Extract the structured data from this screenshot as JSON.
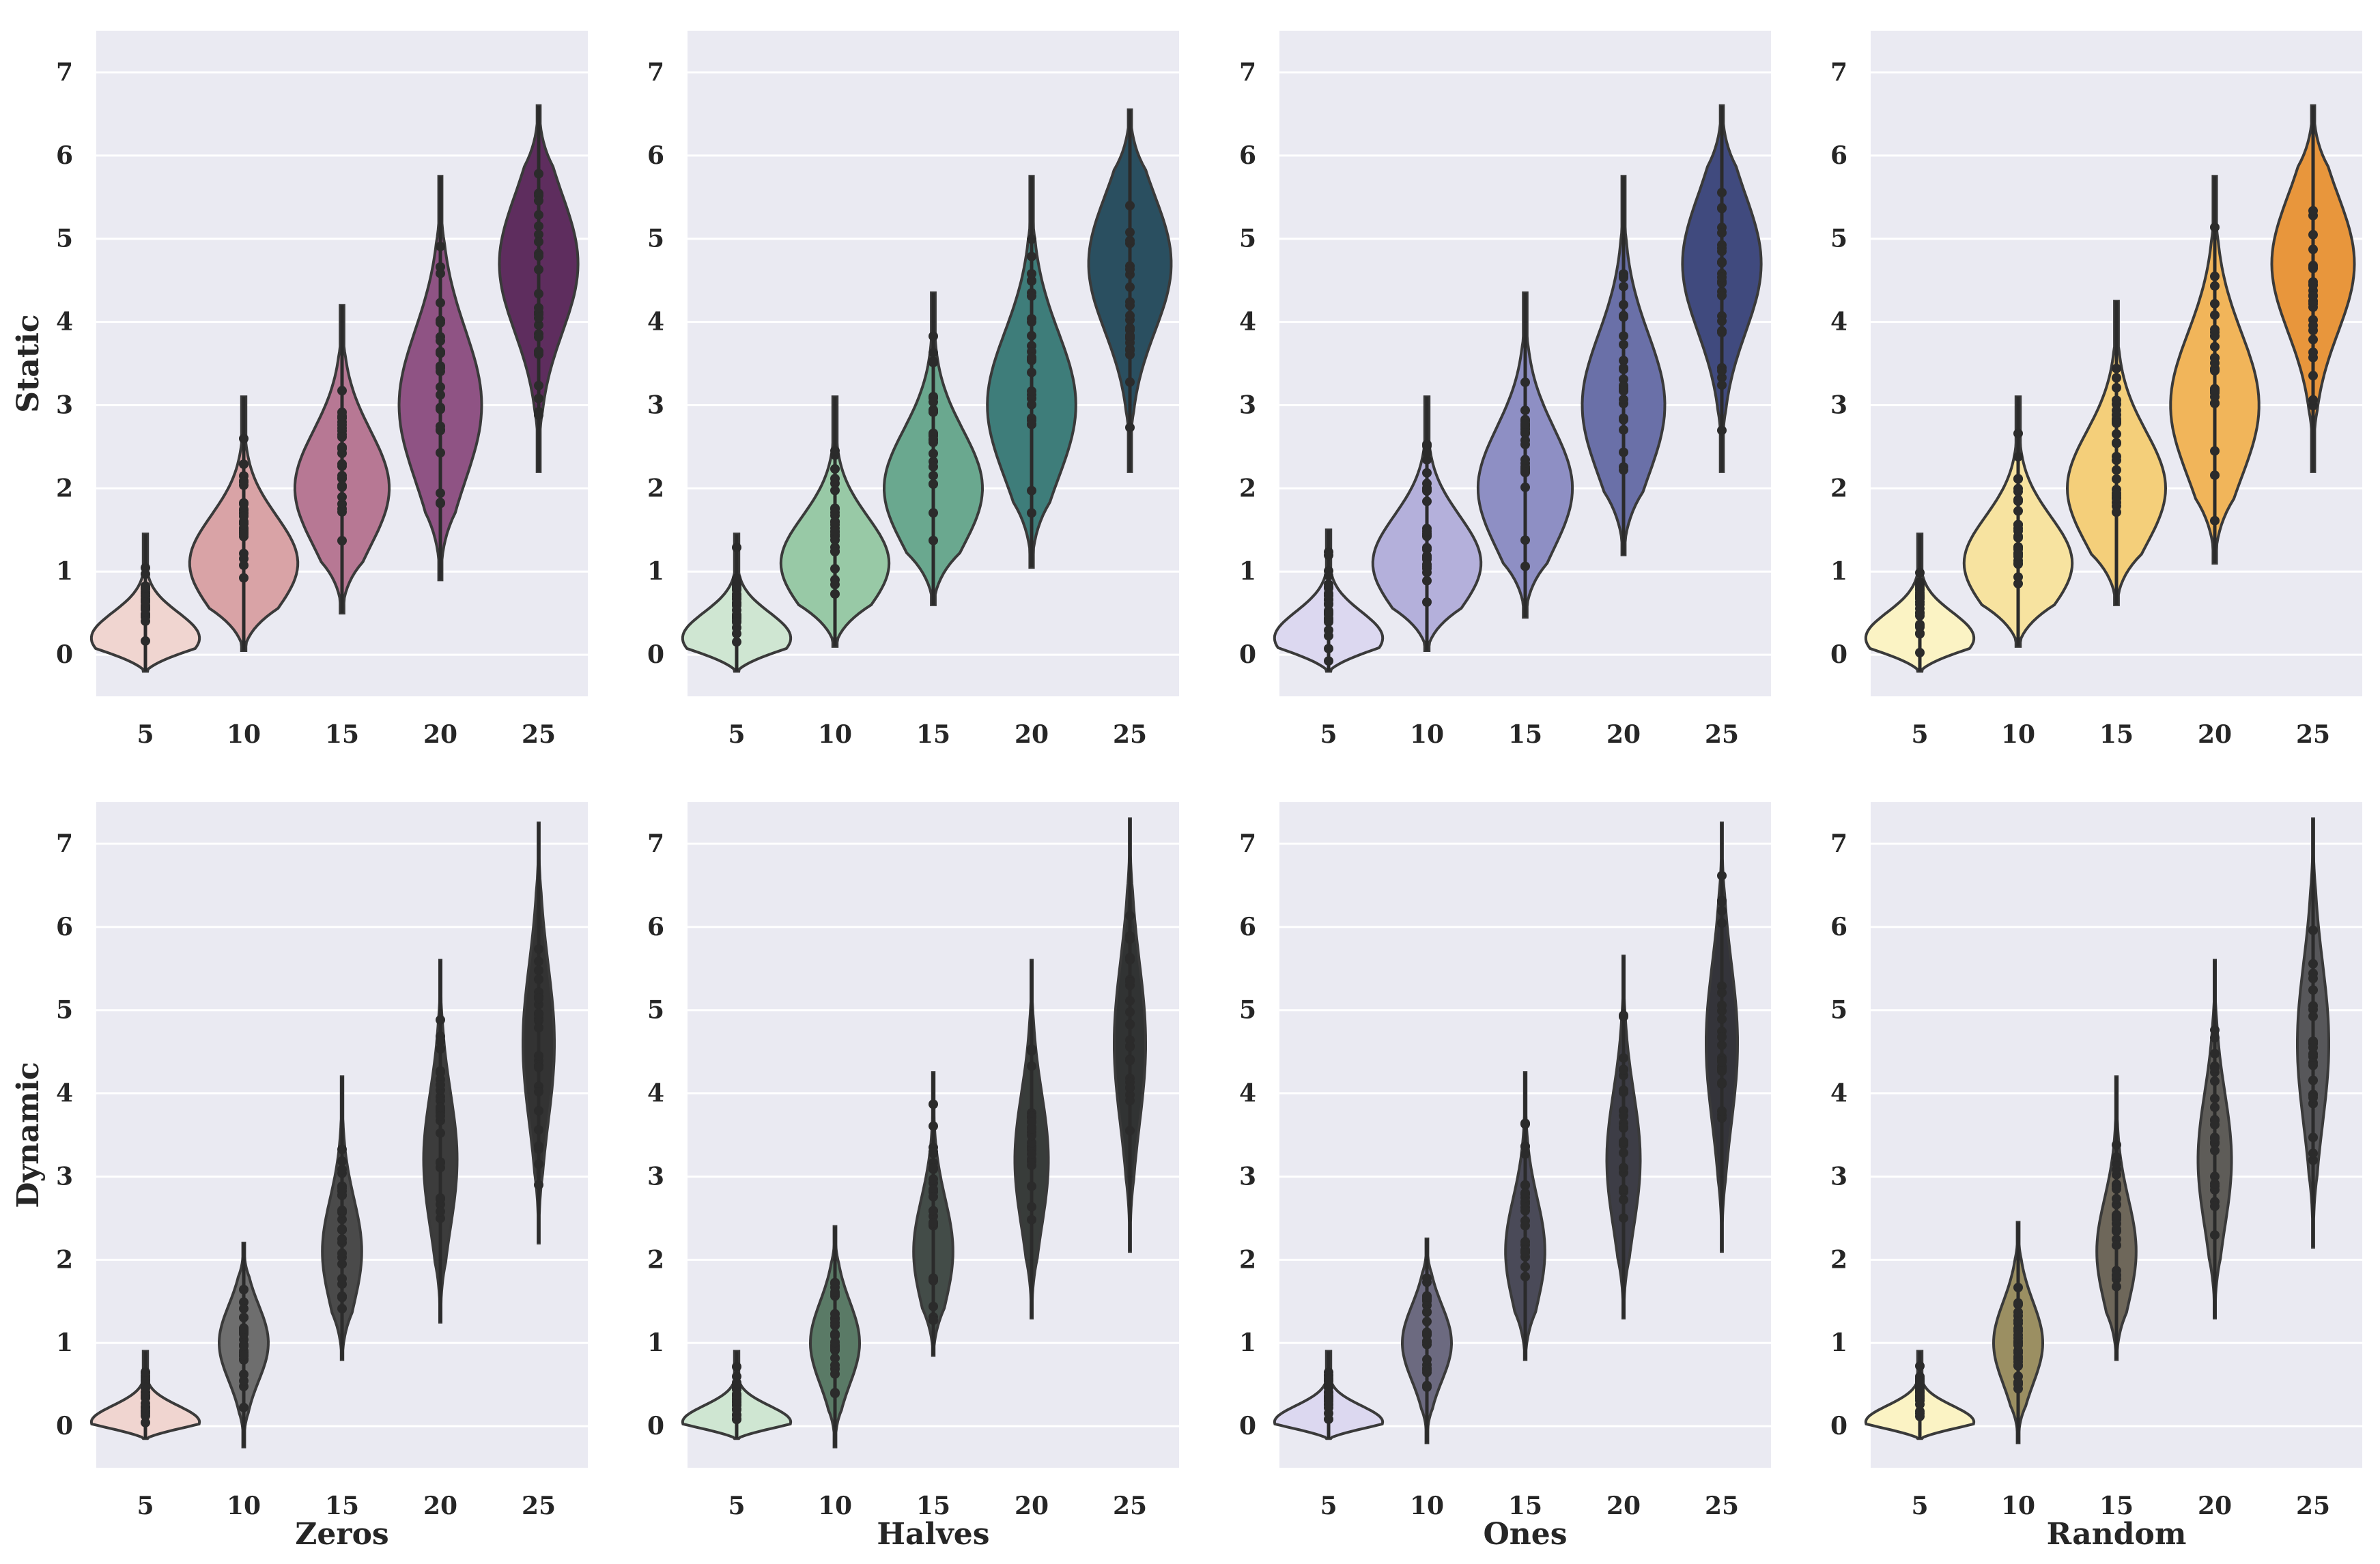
{
  "chart_data": {
    "type": "violin",
    "categories": [
      "5",
      "10",
      "15",
      "20",
      "25"
    ],
    "y_ticks": [
      "0",
      "1",
      "2",
      "3",
      "4",
      "5",
      "6",
      "7"
    ],
    "ylim": [
      -0.5,
      7.5
    ],
    "rows": [
      "Static",
      "Dynamic"
    ],
    "columns": [
      "Zeros",
      "Halves",
      "Ones",
      "Random"
    ],
    "palettes": {
      "Zeros": [
        "#f0d5d0",
        "#d9a3a6",
        "#b77894",
        "#8f5384",
        "#5e2d5e"
      ],
      "Halves": [
        "#cfe6d2",
        "#98c9a6",
        "#6aa88f",
        "#3e7d7a",
        "#2a4f60"
      ],
      "Ones": [
        "#dcd8f0",
        "#b4b0db",
        "#8e8fc4",
        "#6a70a8",
        "#404a7e"
      ],
      "Random": [
        "#fbf3c4",
        "#f7e3a0",
        "#f4cf7a",
        "#f1b55a",
        "#e8963c"
      ]
    },
    "dynamic_palettes": {
      "Zeros": [
        "#f0d5d0",
        "#6e6e6e",
        "#4a4a4a",
        "#3c3c3c",
        "#333333"
      ],
      "Halves": [
        "#cfe6d2",
        "#5a7a66",
        "#434c48",
        "#383c3a",
        "#313333"
      ],
      "Ones": [
        "#dcd8f0",
        "#6c6a80",
        "#4a4a58",
        "#3d3d46",
        "#34343a"
      ],
      "Random": [
        "#fbf3c4",
        "#9b8f62",
        "#6e675a",
        "#5e5c58",
        "#57575a"
      ]
    },
    "panels": [
      {
        "row": "Static",
        "column": "Zeros",
        "violins": [
          {
            "category": "5",
            "min": -0.2,
            "max": 1.45,
            "median": 0.3,
            "mode": 0.2,
            "max_width": 0.55
          },
          {
            "category": "10",
            "min": 0.05,
            "max": 3.1,
            "median": 1.2,
            "mode": 1.1,
            "max_width": 0.55
          },
          {
            "category": "15",
            "min": 0.5,
            "max": 4.2,
            "median": 2.2,
            "mode": 2.0,
            "max_width": 0.48
          },
          {
            "category": "20",
            "min": 0.9,
            "max": 5.75,
            "median": 3.2,
            "mode": 3.0,
            "max_width": 0.42
          },
          {
            "category": "25",
            "min": 2.2,
            "max": 6.6,
            "median": 4.6,
            "mode": 4.7,
            "max_width": 0.4
          }
        ]
      },
      {
        "row": "Static",
        "column": "Halves",
        "violins": [
          {
            "category": "5",
            "min": -0.2,
            "max": 1.45,
            "median": 0.3,
            "mode": 0.2,
            "max_width": 0.55
          },
          {
            "category": "10",
            "min": 0.1,
            "max": 3.1,
            "median": 1.2,
            "mode": 1.1,
            "max_width": 0.55
          },
          {
            "category": "15",
            "min": 0.6,
            "max": 4.35,
            "median": 2.3,
            "mode": 2.0,
            "max_width": 0.5
          },
          {
            "category": "20",
            "min": 1.05,
            "max": 5.75,
            "median": 3.2,
            "mode": 3.0,
            "max_width": 0.45
          },
          {
            "category": "25",
            "min": 2.2,
            "max": 6.55,
            "median": 4.6,
            "mode": 4.7,
            "max_width": 0.42
          }
        ]
      },
      {
        "row": "Static",
        "column": "Ones",
        "violins": [
          {
            "category": "5",
            "min": -0.2,
            "max": 1.5,
            "median": 0.3,
            "mode": 0.2,
            "max_width": 0.55
          },
          {
            "category": "10",
            "min": 0.05,
            "max": 3.1,
            "median": 1.2,
            "mode": 1.1,
            "max_width": 0.55
          },
          {
            "category": "15",
            "min": 0.45,
            "max": 4.35,
            "median": 2.2,
            "mode": 2.0,
            "max_width": 0.48
          },
          {
            "category": "20",
            "min": 1.2,
            "max": 5.75,
            "median": 3.2,
            "mode": 3.0,
            "max_width": 0.42
          },
          {
            "category": "25",
            "min": 2.2,
            "max": 6.6,
            "median": 4.6,
            "mode": 4.7,
            "max_width": 0.4
          }
        ]
      },
      {
        "row": "Static",
        "column": "Random",
        "violins": [
          {
            "category": "5",
            "min": -0.2,
            "max": 1.45,
            "median": 0.3,
            "mode": 0.2,
            "max_width": 0.55
          },
          {
            "category": "10",
            "min": 0.1,
            "max": 3.1,
            "median": 1.2,
            "mode": 1.1,
            "max_width": 0.55
          },
          {
            "category": "15",
            "min": 0.6,
            "max": 4.25,
            "median": 2.2,
            "mode": 2.0,
            "max_width": 0.5
          },
          {
            "category": "20",
            "min": 1.1,
            "max": 5.75,
            "median": 3.2,
            "mode": 3.0,
            "max_width": 0.45
          },
          {
            "category": "25",
            "min": 2.2,
            "max": 6.6,
            "median": 4.6,
            "mode": 4.7,
            "max_width": 0.42
          }
        ]
      },
      {
        "row": "Dynamic",
        "column": "Zeros",
        "violins": [
          {
            "category": "5",
            "min": -0.15,
            "max": 0.9,
            "median": 0.1,
            "mode": 0.05,
            "max_width": 0.55
          },
          {
            "category": "10",
            "min": -0.25,
            "max": 2.2,
            "median": 1.0,
            "mode": 1.0,
            "max_width": 0.25
          },
          {
            "category": "15",
            "min": 0.8,
            "max": 4.2,
            "median": 2.1,
            "mode": 2.1,
            "max_width": 0.2
          },
          {
            "category": "20",
            "min": 1.25,
            "max": 5.6,
            "median": 3.2,
            "mode": 3.2,
            "max_width": 0.17
          },
          {
            "category": "25",
            "min": 2.2,
            "max": 7.25,
            "median": 4.6,
            "mode": 4.6,
            "max_width": 0.16
          }
        ]
      },
      {
        "row": "Dynamic",
        "column": "Halves",
        "violins": [
          {
            "category": "5",
            "min": -0.15,
            "max": 0.9,
            "median": 0.1,
            "mode": 0.05,
            "max_width": 0.55
          },
          {
            "category": "10",
            "min": -0.25,
            "max": 2.4,
            "median": 1.0,
            "mode": 1.0,
            "max_width": 0.25
          },
          {
            "category": "15",
            "min": 0.85,
            "max": 4.25,
            "median": 2.1,
            "mode": 2.1,
            "max_width": 0.2
          },
          {
            "category": "20",
            "min": 1.3,
            "max": 5.6,
            "median": 3.2,
            "mode": 3.2,
            "max_width": 0.17
          },
          {
            "category": "25",
            "min": 2.1,
            "max": 7.3,
            "median": 4.6,
            "mode": 4.6,
            "max_width": 0.16
          }
        ]
      },
      {
        "row": "Dynamic",
        "column": "Ones",
        "violins": [
          {
            "category": "5",
            "min": -0.15,
            "max": 0.9,
            "median": 0.1,
            "mode": 0.05,
            "max_width": 0.55
          },
          {
            "category": "10",
            "min": -0.2,
            "max": 2.25,
            "median": 1.0,
            "mode": 1.0,
            "max_width": 0.25
          },
          {
            "category": "15",
            "min": 0.8,
            "max": 4.25,
            "median": 2.1,
            "mode": 2.1,
            "max_width": 0.2
          },
          {
            "category": "20",
            "min": 1.3,
            "max": 5.65,
            "median": 3.2,
            "mode": 3.2,
            "max_width": 0.17
          },
          {
            "category": "25",
            "min": 2.1,
            "max": 7.25,
            "median": 4.6,
            "mode": 4.6,
            "max_width": 0.16
          }
        ]
      },
      {
        "row": "Dynamic",
        "column": "Random",
        "violins": [
          {
            "category": "5",
            "min": -0.15,
            "max": 0.9,
            "median": 0.1,
            "mode": 0.05,
            "max_width": 0.55
          },
          {
            "category": "10",
            "min": -0.2,
            "max": 2.45,
            "median": 1.0,
            "mode": 1.0,
            "max_width": 0.25
          },
          {
            "category": "15",
            "min": 0.8,
            "max": 4.2,
            "median": 2.1,
            "mode": 2.1,
            "max_width": 0.2
          },
          {
            "category": "20",
            "min": 1.3,
            "max": 5.6,
            "median": 3.2,
            "mode": 3.2,
            "max_width": 0.17
          },
          {
            "category": "25",
            "min": 2.15,
            "max": 7.3,
            "median": 4.6,
            "mode": 4.6,
            "max_width": 0.16
          }
        ]
      }
    ]
  }
}
